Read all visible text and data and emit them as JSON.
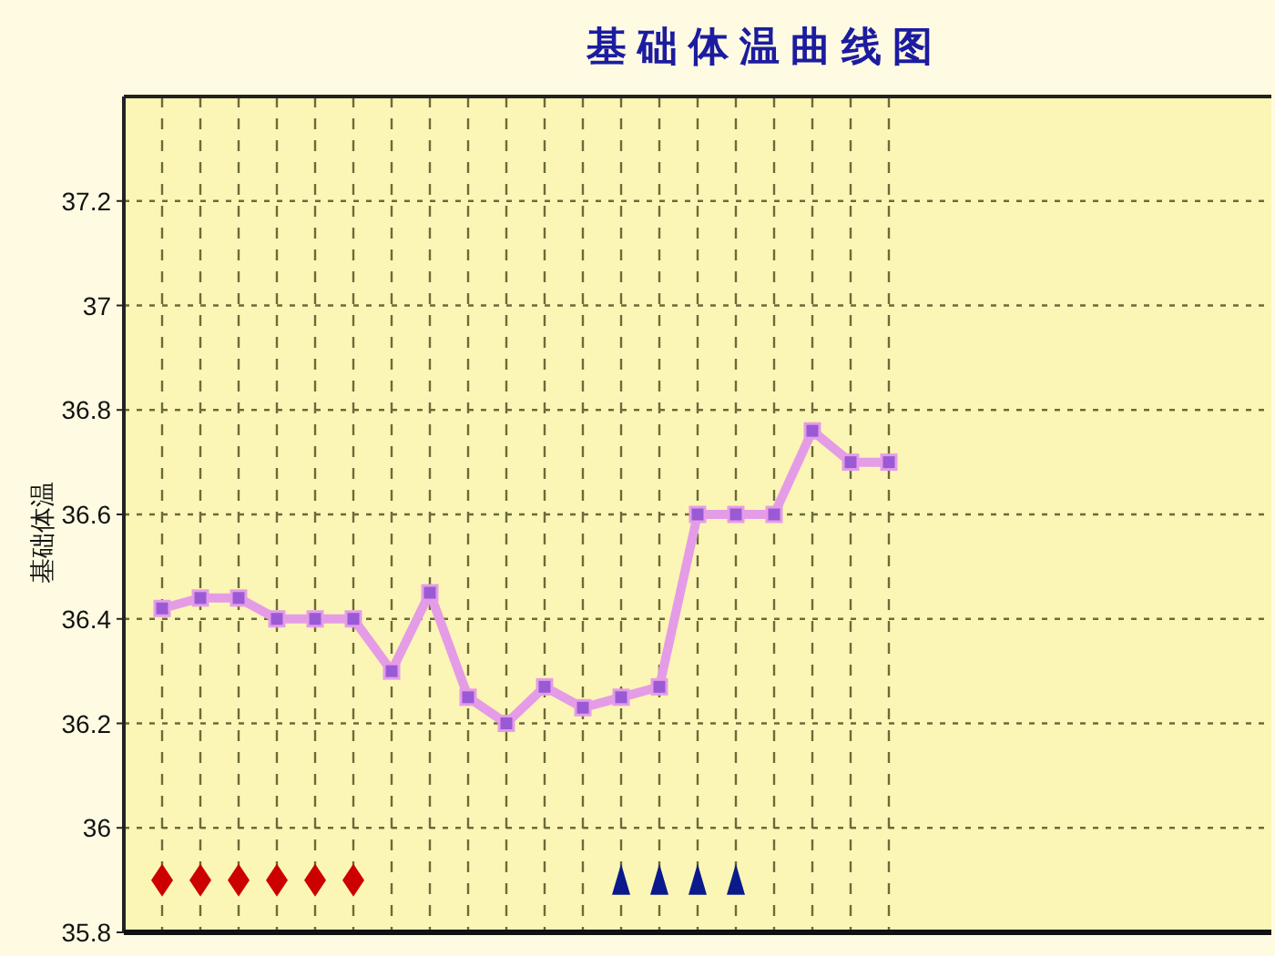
{
  "chart_data": {
    "type": "line",
    "title": "基础体温曲线图",
    "ylabel": "基础体温",
    "categories": [
      null,
      null,
      null,
      null,
      null,
      null,
      null,
      null,
      null,
      null,
      null,
      null,
      null,
      null,
      null,
      null,
      null,
      null,
      null,
      null
    ],
    "series": [
      {
        "type": "line",
        "color": "#e59ce6",
        "marker": "square",
        "line_style": "solid",
        "values": [
          36.42,
          36.44,
          36.44,
          36.4,
          36.4,
          36.4,
          36.3,
          36.45,
          36.25,
          36.2,
          36.27,
          36.23,
          36.25,
          36.27,
          36.6,
          36.6,
          36.6,
          36.76,
          36.7,
          36.7
        ]
      },
      {
        "type": "scatter",
        "color": "#cc0000",
        "marker": "diamond",
        "values": [
          35.9,
          35.9,
          35.9,
          35.9,
          35.9,
          35.9,
          null,
          null,
          null,
          null,
          null,
          null,
          null,
          null,
          null,
          null,
          null,
          null,
          null,
          null
        ]
      },
      {
        "type": "scatter",
        "color": "#0a1a8c",
        "marker": "triangle",
        "values": [
          null,
          null,
          null,
          null,
          null,
          null,
          null,
          null,
          null,
          null,
          null,
          null,
          35.9,
          35.9,
          35.9,
          35.9,
          null,
          null,
          null,
          null
        ]
      }
    ],
    "ylim": [
      35.8,
      37.4
    ],
    "yticks": [
      35.8,
      36,
      36.2,
      36.4,
      36.6,
      36.8,
      37,
      37.2
    ],
    "grid": true,
    "tick_labels": "y"
  }
}
